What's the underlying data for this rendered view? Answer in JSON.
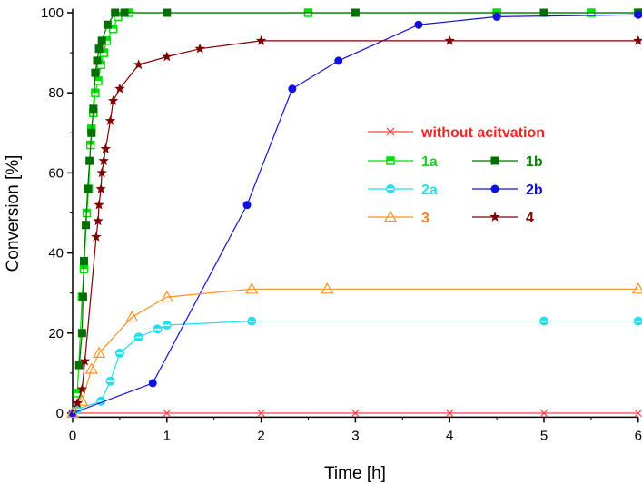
{
  "chart_data": {
    "type": "line",
    "xlabel": "Time [h]",
    "ylabel": "Conversion [%]",
    "xlim": [
      0,
      6
    ],
    "ylim": [
      -1,
      101
    ],
    "xticks": [
      "0",
      "1",
      "2",
      "3",
      "4",
      "5",
      "6"
    ],
    "yticks": [
      "0",
      "20",
      "40",
      "60",
      "80",
      "100"
    ],
    "grid": false,
    "legend_placement": "center-right",
    "series": [
      {
        "name": "without acitvation",
        "color": "#ff4040",
        "marker": "x",
        "x": [
          0,
          1,
          2,
          3,
          4,
          5,
          6
        ],
        "y": [
          0,
          0,
          0,
          0,
          0,
          0,
          0
        ]
      },
      {
        "name": "1a",
        "color": "#00e000",
        "marker": "half-square",
        "x": [
          0.05,
          0.1,
          0.12,
          0.15,
          0.17,
          0.19,
          0.2,
          0.22,
          0.24,
          0.27,
          0.3,
          0.33,
          0.36,
          0.43,
          0.48,
          0.6,
          2.5,
          4.5,
          5.5,
          6
        ],
        "y": [
          5,
          29,
          36,
          50,
          56,
          67,
          71,
          75,
          80,
          83,
          87,
          90,
          93,
          96,
          99,
          100,
          100,
          100,
          100,
          100
        ]
      },
      {
        "name": "1b",
        "color": "#007000",
        "marker": "square",
        "x": [
          0.07,
          0.1,
          0.11,
          0.12,
          0.14,
          0.16,
          0.18,
          0.2,
          0.22,
          0.24,
          0.26,
          0.28,
          0.31,
          0.37,
          0.45,
          0.55,
          1,
          3,
          5,
          6
        ],
        "y": [
          12,
          20,
          29,
          38,
          47,
          56,
          63,
          70,
          76,
          85,
          88,
          91,
          93,
          97,
          100,
          100,
          100,
          100,
          100,
          100
        ]
      },
      {
        "name": "2a",
        "color": "#20e0f0",
        "marker": "half-circle",
        "x": [
          0,
          0.05,
          0.3,
          0.4,
          0.5,
          0.7,
          0.9,
          1.0,
          1.9,
          5,
          6
        ],
        "y": [
          0,
          1,
          3,
          8,
          15,
          19,
          21,
          22,
          23,
          23,
          23
        ]
      },
      {
        "name": "2b",
        "color": "#1010e0",
        "marker": "circle",
        "x": [
          0,
          0.85,
          1.85,
          2.33,
          2.82,
          3.67,
          4.5,
          6
        ],
        "y": [
          0,
          7.5,
          52,
          81,
          88,
          97,
          99,
          99.5
        ]
      },
      {
        "name": "3",
        "color": "#ff9020",
        "marker": "triangle",
        "x": [
          0,
          0.1,
          0.2,
          0.28,
          0.63,
          1.0,
          1.9,
          2.7,
          6
        ],
        "y": [
          0,
          3,
          11,
          15,
          24,
          29,
          31,
          31,
          31
        ]
      },
      {
        "name": "4",
        "color": "#800000",
        "marker": "star",
        "x": [
          0.05,
          0.1,
          0.13,
          0.25,
          0.27,
          0.28,
          0.3,
          0.31,
          0.33,
          0.35,
          0.4,
          0.43,
          0.5,
          0.7,
          1.0,
          1.35,
          2.0,
          4.0,
          6
        ],
        "y": [
          2.5,
          6,
          13,
          44,
          48,
          52,
          56,
          60,
          63,
          66,
          73,
          78,
          81,
          87,
          89,
          91,
          93,
          93,
          93
        ]
      }
    ]
  }
}
